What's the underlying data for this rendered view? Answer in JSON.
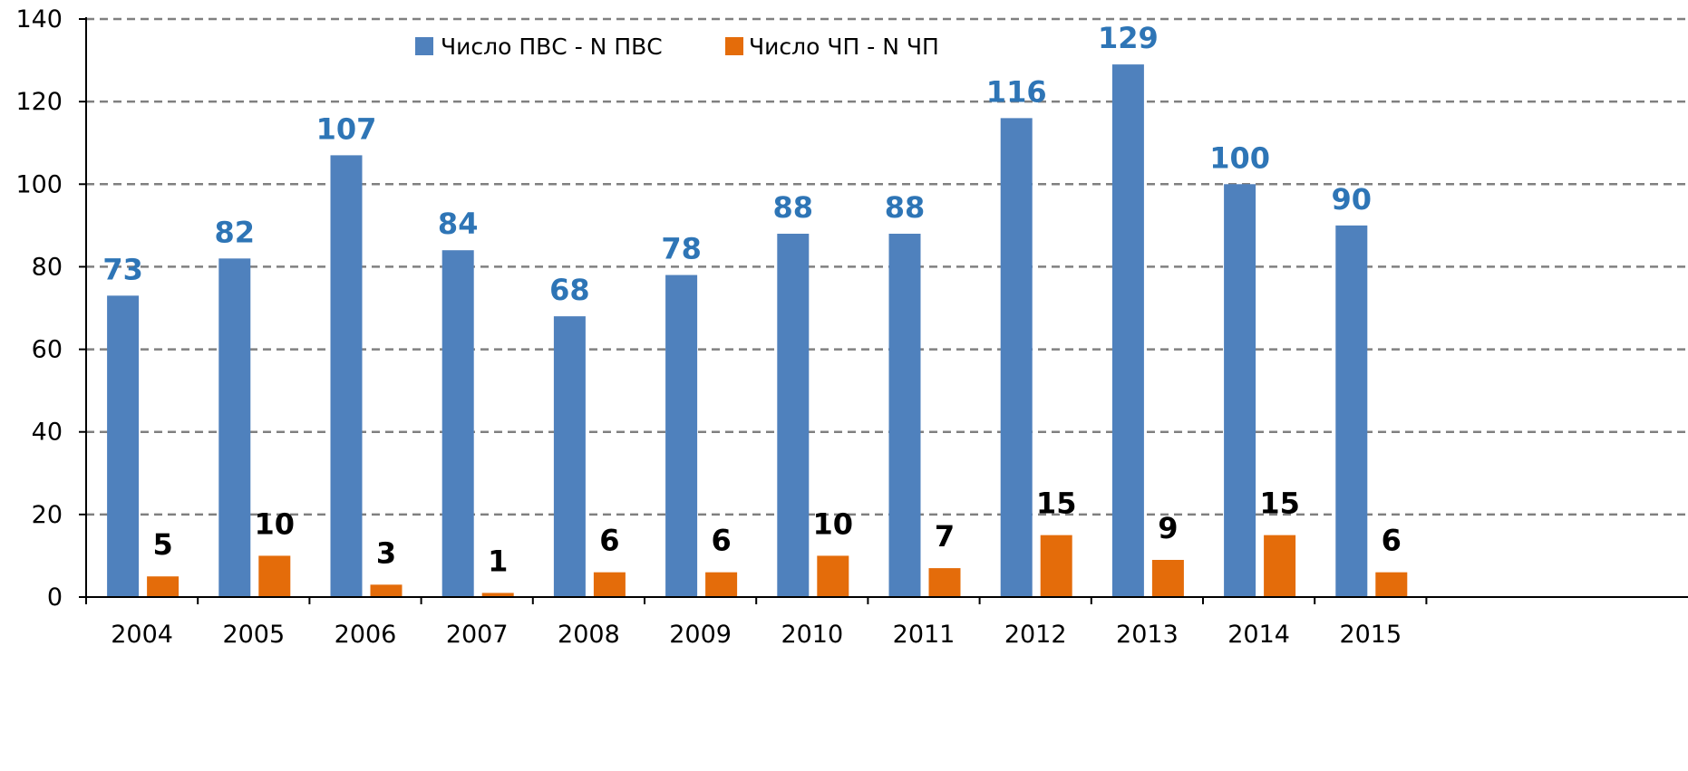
{
  "chart_data": {
    "type": "bar",
    "title": "",
    "xlabel": "",
    "ylabel": "",
    "categories": [
      "2004",
      "2005",
      "2006",
      "2007",
      "2008",
      "2009",
      "2010",
      "2011",
      "2012",
      "2013",
      "2014",
      "2015"
    ],
    "series": [
      {
        "name": "Число ПВС - N ПВС",
        "color": "#4f81bd",
        "label_color": "#2e75b6",
        "values": [
          73,
          82,
          107,
          84,
          68,
          78,
          88,
          88,
          116,
          129,
          100,
          90
        ]
      },
      {
        "name": "Число ЧП - N ЧП",
        "color": "#e46c0a",
        "label_color": "#000000",
        "values": [
          5,
          10,
          3,
          1,
          6,
          6,
          10,
          7,
          15,
          9,
          15,
          6
        ]
      }
    ],
    "ylim": [
      0,
      140
    ],
    "yticks": [
      0,
      20,
      40,
      60,
      80,
      100,
      120,
      140
    ],
    "grid": true,
    "grid_style": "dashed",
    "legend_position": "top-center",
    "data_labels": true
  }
}
